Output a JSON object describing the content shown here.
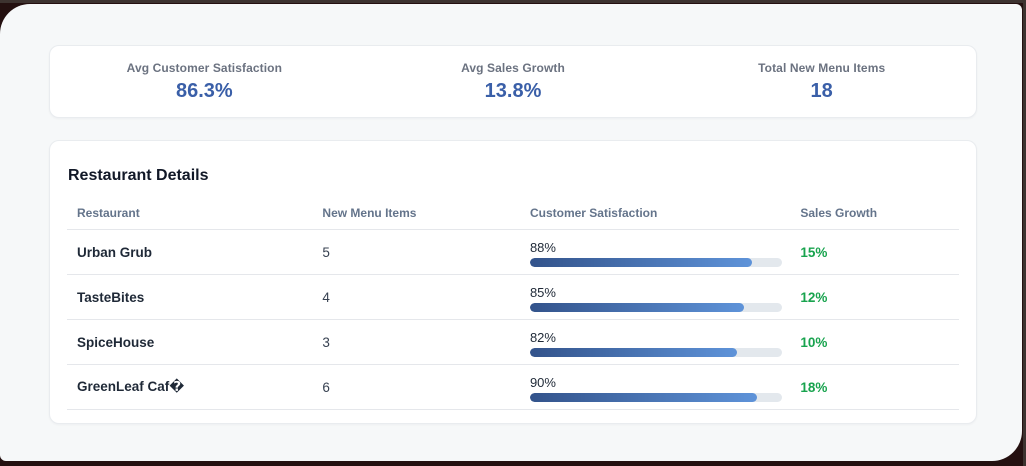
{
  "stats": [
    {
      "label": "Avg Customer Satisfaction",
      "value": "86.3%"
    },
    {
      "label": "Avg Sales Growth",
      "value": "13.8%"
    },
    {
      "label": "Total New Menu Items",
      "value": "18"
    }
  ],
  "details": {
    "title": "Restaurant Details",
    "columns": [
      "Restaurant",
      "New Menu Items",
      "Customer Satisfaction",
      "Sales Growth"
    ],
    "rows": [
      {
        "restaurant": "Urban Grub",
        "new_menu_items": "5",
        "satisfaction_label": "88%",
        "satisfaction_pct": 88,
        "sales_growth": "15%"
      },
      {
        "restaurant": "TasteBites",
        "new_menu_items": "4",
        "satisfaction_label": "85%",
        "satisfaction_pct": 85,
        "sales_growth": "12%"
      },
      {
        "restaurant": "SpiceHouse",
        "new_menu_items": "3",
        "satisfaction_label": "82%",
        "satisfaction_pct": 82,
        "sales_growth": "10%"
      },
      {
        "restaurant": "GreenLeaf Caf�",
        "new_menu_items": "6",
        "satisfaction_label": "90%",
        "satisfaction_pct": 90,
        "sales_growth": "18%"
      }
    ]
  },
  "colors": {
    "accent_blue": "#3a5fa8",
    "growth_green": "#18a34e",
    "bar_gradient_start": "#33538b",
    "bar_gradient_end": "#5e93d9",
    "bar_track": "#e3e8ed",
    "panel_background": "#f6f8f9",
    "frame_background": "#241010"
  }
}
